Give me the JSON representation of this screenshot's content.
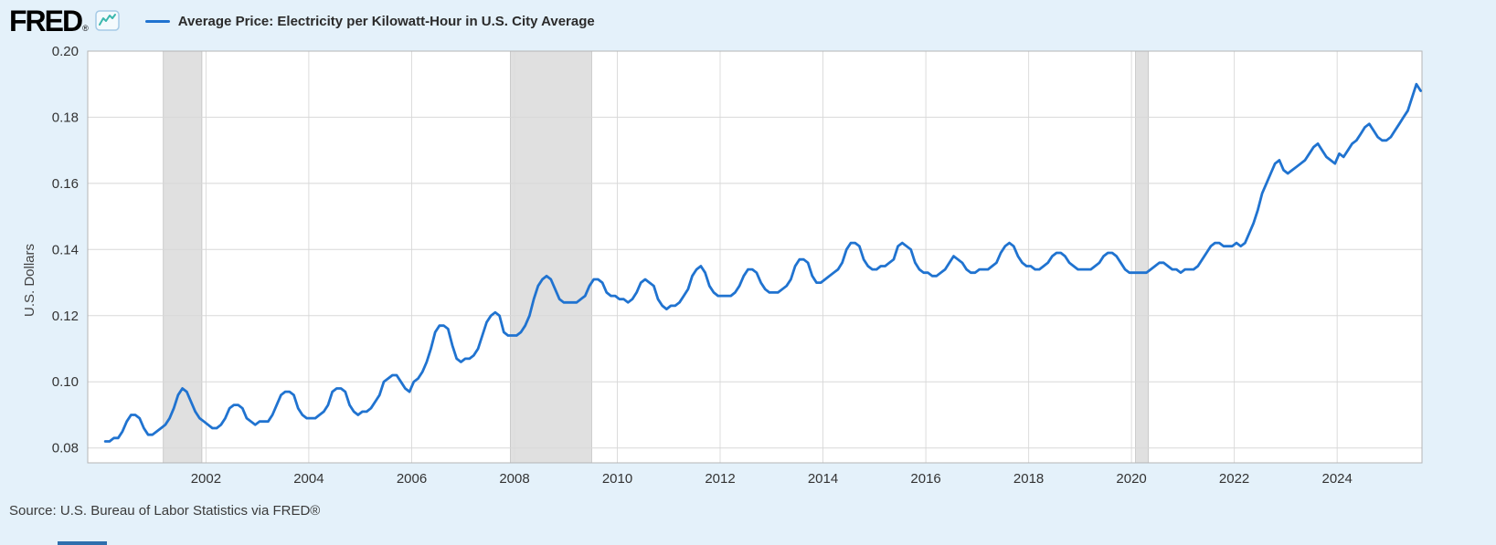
{
  "header": {
    "logo": "FRED",
    "logo_reg": "®"
  },
  "legend": {
    "label": "Average Price: Electricity per Kilowatt-Hour in U.S. City Average"
  },
  "footer": {
    "source": "Source: U.S. Bureau of Labor Statistics via FRED®"
  },
  "colors": {
    "page_background": "#e4f1fa",
    "plot_background": "#ffffff",
    "gridline": "#d8d8d8",
    "plot_border": "#b5b5b5",
    "tick_label": "#333333"
  },
  "chart_data": {
    "type": "line",
    "title": "Average Price: Electricity per Kilowatt-Hour in U.S. City Average",
    "ylabel": "U.S. Dollars",
    "xlabel": "",
    "frequency": "monthly",
    "start": "2000-01",
    "units": "U.S. Dollars per kilowatt-hour",
    "line_color": "#2073d0",
    "recession_color": "#e0e0e0",
    "grid": true,
    "legend_position": "top",
    "x_range": [
      1999.7,
      2025.65
    ],
    "y_range": [
      0.0755,
      0.2
    ],
    "y_ticks": [
      0.08,
      0.1,
      0.12,
      0.14,
      0.16,
      0.18,
      0.2
    ],
    "x_ticks": [
      2002,
      2004,
      2006,
      2008,
      2010,
      2012,
      2014,
      2016,
      2018,
      2020,
      2022,
      2024
    ],
    "recessions": [
      [
        2001.17,
        2001.92
      ],
      [
        2007.92,
        2009.5
      ],
      [
        2020.08,
        2020.33
      ]
    ],
    "values": [
      0.082,
      0.082,
      0.083,
      0.083,
      0.085,
      0.088,
      0.09,
      0.09,
      0.089,
      0.086,
      0.084,
      0.084,
      0.085,
      0.086,
      0.087,
      0.089,
      0.092,
      0.096,
      0.098,
      0.097,
      0.094,
      0.091,
      0.089,
      0.088,
      0.087,
      0.086,
      0.086,
      0.087,
      0.089,
      0.092,
      0.093,
      0.093,
      0.092,
      0.089,
      0.088,
      0.087,
      0.088,
      0.088,
      0.088,
      0.09,
      0.093,
      0.096,
      0.097,
      0.097,
      0.096,
      0.092,
      0.09,
      0.089,
      0.089,
      0.089,
      0.09,
      0.091,
      0.093,
      0.097,
      0.098,
      0.098,
      0.097,
      0.093,
      0.091,
      0.09,
      0.091,
      0.091,
      0.092,
      0.094,
      0.096,
      0.1,
      0.101,
      0.102,
      0.102,
      0.1,
      0.098,
      0.097,
      0.1,
      0.101,
      0.103,
      0.106,
      0.11,
      0.115,
      0.117,
      0.117,
      0.116,
      0.111,
      0.107,
      0.106,
      0.107,
      0.107,
      0.108,
      0.11,
      0.114,
      0.118,
      0.12,
      0.121,
      0.12,
      0.115,
      0.114,
      0.114,
      0.114,
      0.115,
      0.117,
      0.12,
      0.125,
      0.129,
      0.131,
      0.132,
      0.131,
      0.128,
      0.125,
      0.124,
      0.124,
      0.124,
      0.124,
      0.125,
      0.126,
      0.129,
      0.131,
      0.131,
      0.13,
      0.127,
      0.126,
      0.126,
      0.125,
      0.125,
      0.124,
      0.125,
      0.127,
      0.13,
      0.131,
      0.13,
      0.129,
      0.125,
      0.123,
      0.122,
      0.123,
      0.123,
      0.124,
      0.126,
      0.128,
      0.132,
      0.134,
      0.135,
      0.133,
      0.129,
      0.127,
      0.126,
      0.126,
      0.126,
      0.126,
      0.127,
      0.129,
      0.132,
      0.134,
      0.134,
      0.133,
      0.13,
      0.128,
      0.127,
      0.127,
      0.127,
      0.128,
      0.129,
      0.131,
      0.135,
      0.137,
      0.137,
      0.136,
      0.132,
      0.13,
      0.13,
      0.131,
      0.132,
      0.133,
      0.134,
      0.136,
      0.14,
      0.142,
      0.142,
      0.141,
      0.137,
      0.135,
      0.134,
      0.134,
      0.135,
      0.135,
      0.136,
      0.137,
      0.141,
      0.142,
      0.141,
      0.14,
      0.136,
      0.134,
      0.133,
      0.133,
      0.132,
      0.132,
      0.133,
      0.134,
      0.136,
      0.138,
      0.137,
      0.136,
      0.134,
      0.133,
      0.133,
      0.134,
      0.134,
      0.134,
      0.135,
      0.136,
      0.139,
      0.141,
      0.142,
      0.141,
      0.138,
      0.136,
      0.135,
      0.135,
      0.134,
      0.134,
      0.135,
      0.136,
      0.138,
      0.139,
      0.139,
      0.138,
      0.136,
      0.135,
      0.134,
      0.134,
      0.134,
      0.134,
      0.135,
      0.136,
      0.138,
      0.139,
      0.139,
      0.138,
      0.136,
      0.134,
      0.133,
      0.133,
      0.133,
      0.133,
      0.133,
      0.134,
      0.135,
      0.136,
      0.136,
      0.135,
      0.134,
      0.134,
      0.133,
      0.134,
      0.134,
      0.134,
      0.135,
      0.137,
      0.139,
      0.141,
      0.142,
      0.142,
      0.141,
      0.141,
      0.141,
      0.142,
      0.141,
      0.142,
      0.145,
      0.148,
      0.152,
      0.157,
      0.16,
      0.163,
      0.166,
      0.167,
      0.164,
      0.163,
      0.164,
      0.165,
      0.166,
      0.167,
      0.169,
      0.171,
      0.172,
      0.17,
      0.168,
      0.167,
      0.166,
      0.169,
      0.168,
      0.17,
      0.172,
      0.173,
      0.175,
      0.177,
      0.178,
      0.176,
      0.174,
      0.173,
      0.173,
      0.174,
      0.176,
      0.178,
      0.18,
      0.182,
      0.186,
      0.19,
      0.188
    ]
  }
}
